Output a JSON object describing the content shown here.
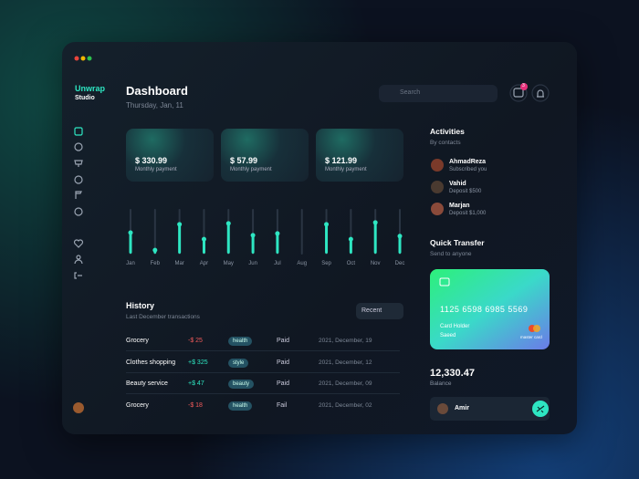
{
  "brand": {
    "name": "Unwrap",
    "sub": "Studio"
  },
  "header": {
    "title": "Dashboard",
    "date": "Thursday, Jan, 11",
    "search": "Search",
    "badge": "3"
  },
  "cards": [
    {
      "amount": "$ 330.99",
      "label": "Monthly payment"
    },
    {
      "amount": "$ 57.99",
      "label": "Monthly payment"
    },
    {
      "amount": "$ 121.99",
      "label": "Monthly payment"
    }
  ],
  "chart": {
    "type": "bar",
    "categories": [
      "Jan",
      "Feb",
      "Mar",
      "Apr",
      "May",
      "Jun",
      "Jul",
      "Aug",
      "Sep",
      "Oct",
      "Nov",
      "Dec"
    ],
    "values": [
      48,
      8,
      67,
      33,
      69,
      42,
      46,
      0,
      67,
      33,
      71,
      40
    ],
    "ylim": [
      0,
      100
    ],
    "color": "#2ee6c2"
  },
  "history": {
    "title": "History",
    "subtitle": "Last December transactions",
    "filter": "Recent",
    "rows": [
      [
        "Grocery",
        "-$ 25",
        "health",
        "Paid",
        "2021, December, 19"
      ],
      [
        "Clothes shopping",
        "+$ 325",
        "style",
        "Paid",
        "2021, December, 12"
      ],
      [
        "Beauty service",
        "+$ 47",
        "beauty",
        "Paid",
        "2021, December, 09"
      ],
      [
        "Grocery",
        "-$ 18",
        "health",
        "Fail",
        "2021, December, 02"
      ]
    ]
  },
  "activities": {
    "title": "Activities",
    "subtitle": "By contacts",
    "contacts": [
      {
        "name": "AhmadReza",
        "note": "Subscribed you"
      },
      {
        "name": "Vahid",
        "note": "Deposit $500"
      },
      {
        "name": "Marjan",
        "note": "Deposit $1,000"
      }
    ]
  },
  "transfer": {
    "title": "Quick Transfer",
    "subtitle": "Send to anyone",
    "card": {
      "number": "1125  6598  6985  5569",
      "holder_label": "Card Holder",
      "holder": "Saeed",
      "brand": "master card"
    },
    "balance": "12,330.47",
    "balance_label": "Balance",
    "recipient": "Amir"
  }
}
